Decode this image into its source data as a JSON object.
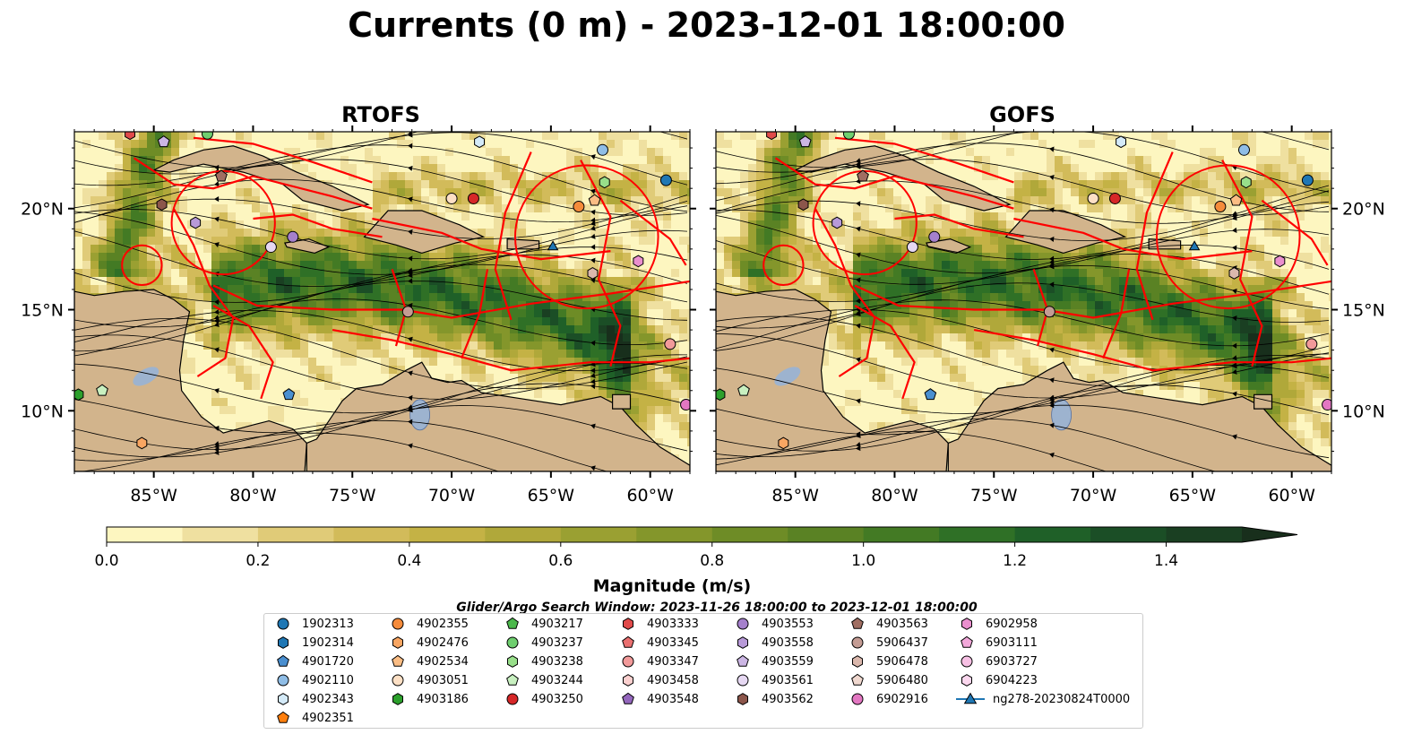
{
  "title": "Currents (0 m) - 2023-12-01 18:00:00",
  "panels": [
    {
      "name": "rtofs",
      "title": "RTOFS"
    },
    {
      "name": "gofs",
      "title": "GOFS"
    }
  ],
  "axes": {
    "lon_ticks": [
      "85°W",
      "80°W",
      "75°W",
      "70°W",
      "65°W",
      "60°W"
    ],
    "lat_ticks": [
      "20°N",
      "15°N",
      "10°N"
    ],
    "lon_range": [
      -89,
      -58
    ],
    "lat_range": [
      7,
      23.8
    ]
  },
  "colorbar": {
    "label": "Magnitude (m/s)",
    "ticks": [
      "0.0",
      "0.2",
      "0.4",
      "0.6",
      "0.8",
      "1.0",
      "1.2",
      "1.4"
    ],
    "range": [
      0,
      1.5
    ],
    "extend": "max",
    "colors": [
      "#fdf6c0",
      "#efe0a0",
      "#e0cb78",
      "#d2bb5a",
      "#c4b245",
      "#b0a83a",
      "#9aa032",
      "#84962b",
      "#6e8c26",
      "#5a8224",
      "#437a24",
      "#2f7026",
      "#1f6028",
      "#1b4e26",
      "#1a3f22",
      "#182f1c"
    ]
  },
  "colors": {
    "land": "#d2b48c",
    "lake": "#9db3cf",
    "eez": "#ff0000",
    "streamline": "#000000"
  },
  "legend": {
    "title": "Glider/Argo Search Window: 2023-11-26 18:00:00 to 2023-12-01 18:00:00",
    "items": [
      {
        "label": "1902313",
        "marker": "circle",
        "color": "#1f77b4"
      },
      {
        "label": "1902314",
        "marker": "hexagon",
        "color": "#1f77b4"
      },
      {
        "label": "4901720",
        "marker": "pentagon",
        "color": "#4a8fd0"
      },
      {
        "label": "4902110",
        "marker": "circle",
        "color": "#8fbde6"
      },
      {
        "label": "4902343",
        "marker": "hexagon",
        "color": "#d4eaf8"
      },
      {
        "label": "4902351",
        "marker": "pentagon",
        "color": "#ff7f0e"
      },
      {
        "label": "4902355",
        "marker": "circle",
        "color": "#f58b3b"
      },
      {
        "label": "4902476",
        "marker": "hexagon",
        "color": "#f9a662"
      },
      {
        "label": "4902534",
        "marker": "pentagon",
        "color": "#fbbd84"
      },
      {
        "label": "4903051",
        "marker": "circle",
        "color": "#fde0c5"
      },
      {
        "label": "4903186",
        "marker": "hexagon",
        "color": "#2ca02c"
      },
      {
        "label": "4903217",
        "marker": "pentagon",
        "color": "#4cb84c"
      },
      {
        "label": "4903237",
        "marker": "circle",
        "color": "#6fcf6f"
      },
      {
        "label": "4903238",
        "marker": "hexagon",
        "color": "#98df8a"
      },
      {
        "label": "4903244",
        "marker": "pentagon",
        "color": "#c8f0c0"
      },
      {
        "label": "4903250",
        "marker": "circle",
        "color": "#d62728"
      },
      {
        "label": "4903333",
        "marker": "hexagon",
        "color": "#e04a4a"
      },
      {
        "label": "4903345",
        "marker": "pentagon",
        "color": "#ea7070"
      },
      {
        "label": "4903347",
        "marker": "circle",
        "color": "#f29a9a"
      },
      {
        "label": "4903458",
        "marker": "hexagon",
        "color": "#fbd0cf"
      },
      {
        "label": "4903548",
        "marker": "pentagon",
        "color": "#9467bd"
      },
      {
        "label": "4903553",
        "marker": "circle",
        "color": "#a580cc"
      },
      {
        "label": "4903558",
        "marker": "hexagon",
        "color": "#b89ad8"
      },
      {
        "label": "4903559",
        "marker": "pentagon",
        "color": "#ccb6e4"
      },
      {
        "label": "4903561",
        "marker": "circle",
        "color": "#e6d8f2"
      },
      {
        "label": "4903562",
        "marker": "hexagon",
        "color": "#8c564b"
      },
      {
        "label": "4903563",
        "marker": "pentagon",
        "color": "#a06e62"
      },
      {
        "label": "5906437",
        "marker": "circle",
        "color": "#c49c94"
      },
      {
        "label": "5906478",
        "marker": "hexagon",
        "color": "#dbb8ad"
      },
      {
        "label": "5906480",
        "marker": "pentagon",
        "color": "#f0d8cf"
      },
      {
        "label": "6902916",
        "marker": "circle",
        "color": "#e377c2"
      },
      {
        "label": "6902958",
        "marker": "hexagon",
        "color": "#ea8fce"
      },
      {
        "label": "6903111",
        "marker": "pentagon",
        "color": "#f2a8da"
      },
      {
        "label": "6903727",
        "marker": "circle",
        "color": "#f7c0e4"
      },
      {
        "label": "6904223",
        "marker": "hexagon",
        "color": "#fbd7ee"
      },
      {
        "label": "ng278-20230824T0000",
        "marker": "triangle-line",
        "color": "#1f77b4"
      }
    ]
  },
  "markers": [
    {
      "id": "1902313",
      "lon": -59.2,
      "lat": 21.4
    },
    {
      "id": "4902110",
      "lon": -62.4,
      "lat": 22.9
    },
    {
      "id": "4902343",
      "lon": -68.6,
      "lat": 23.3
    },
    {
      "id": "4902355",
      "lon": -63.6,
      "lat": 20.1
    },
    {
      "id": "4902534",
      "lon": -62.8,
      "lat": 20.4
    },
    {
      "id": "4903051",
      "lon": -70.0,
      "lat": 20.5
    },
    {
      "id": "4903238",
      "lon": -62.3,
      "lat": 21.3
    },
    {
      "id": "4903250",
      "lon": -68.9,
      "lat": 20.5
    },
    {
      "id": "4903347",
      "lon": -59.0,
      "lat": 13.3
    },
    {
      "id": "4903553",
      "lon": -78.0,
      "lat": 18.6
    },
    {
      "id": "4903558",
      "lon": -82.9,
      "lat": 19.3
    },
    {
      "id": "4903559",
      "lon": -84.5,
      "lat": 23.3
    },
    {
      "id": "4903561",
      "lon": -79.1,
      "lat": 18.1
    },
    {
      "id": "4903562",
      "lon": -84.6,
      "lat": 20.2
    },
    {
      "id": "4903563",
      "lon": -81.6,
      "lat": 21.6
    },
    {
      "id": "5906437",
      "lon": -72.2,
      "lat": 14.9
    },
    {
      "id": "5906478",
      "lon": -62.9,
      "lat": 16.8
    },
    {
      "id": "4901720",
      "lon": -78.2,
      "lat": 10.8
    },
    {
      "id": "4902476",
      "lon": -85.6,
      "lat": 8.4
    },
    {
      "id": "4903186",
      "lon": -88.8,
      "lat": 10.8
    },
    {
      "id": "4903244",
      "lon": -87.6,
      "lat": 11.0
    },
    {
      "id": "6902958",
      "lon": -60.6,
      "lat": 17.4
    },
    {
      "id": "6902916",
      "lon": -58.2,
      "lat": 10.3
    },
    {
      "id": "4903237",
      "lon": -82.3,
      "lat": 23.7
    },
    {
      "id": "4903333",
      "lon": -86.2,
      "lat": 23.7
    },
    {
      "id": "ng278-20230824T0000",
      "lon": -64.9,
      "lat": 18.1
    }
  ]
}
